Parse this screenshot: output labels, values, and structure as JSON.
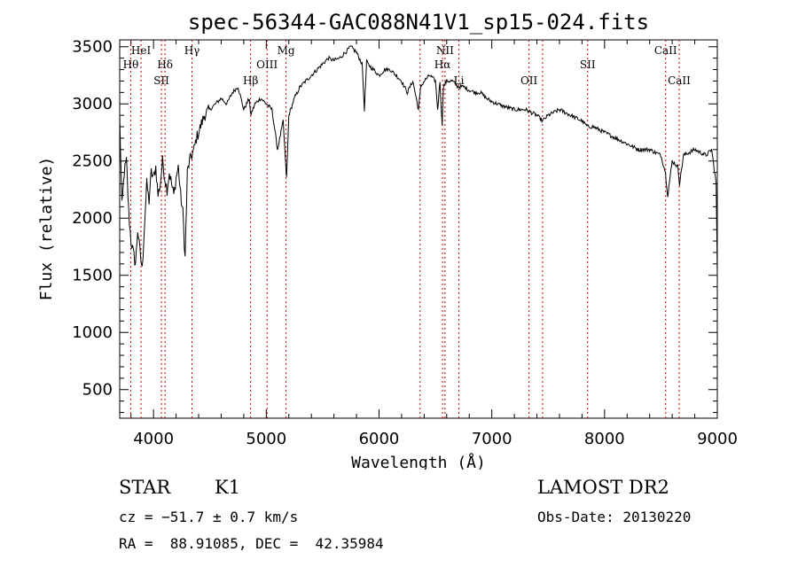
{
  "chart_data": {
    "type": "line",
    "title": "spec-56344-GAC088N41V1_sp15-024.fits",
    "xlabel": "Wavelength (Å)",
    "ylabel": "Flux (relative)",
    "xlim": [
      3700,
      9000
    ],
    "ylim": [
      250,
      3560
    ],
    "x_ticks": [
      4000,
      5000,
      6000,
      7000,
      8000,
      9000
    ],
    "y_ticks": [
      500,
      1000,
      1500,
      2000,
      2500,
      3000,
      3500
    ],
    "grid": false,
    "series": [
      {
        "x": [
          3700,
          3720,
          3740,
          3760,
          3780,
          3800,
          3820,
          3840,
          3860,
          3880,
          3900,
          3920,
          3940,
          3960,
          3980,
          4000,
          4020,
          4040,
          4060,
          4080,
          4100,
          4120,
          4140,
          4160,
          4180,
          4200,
          4220,
          4240,
          4260,
          4280,
          4300,
          4320,
          4340,
          4360,
          4380,
          4400,
          4450,
          4500,
          4550,
          4600,
          4650,
          4700,
          4750,
          4800,
          4850,
          4860,
          4900,
          4950,
          5000,
          5050,
          5100,
          5150,
          5170,
          5180,
          5200,
          5250,
          5300,
          5350,
          5400,
          5450,
          5500,
          5550,
          5600,
          5650,
          5700,
          5750,
          5800,
          5850,
          5870,
          5890,
          5900,
          5950,
          6000,
          6050,
          6100,
          6150,
          6200,
          6250,
          6300,
          6350,
          6370,
          6400,
          6450,
          6500,
          6520,
          6540,
          6560,
          6570,
          6600,
          6650,
          6700,
          6750,
          6800,
          6850,
          6900,
          6950,
          7000,
          7100,
          7200,
          7300,
          7400,
          7450,
          7500,
          7600,
          7700,
          7800,
          7850,
          7900,
          8000,
          8100,
          8200,
          8300,
          8400,
          8500,
          8540,
          8560,
          8600,
          8650,
          8665,
          8700,
          8800,
          8900,
          8950,
          8990,
          9000
        ],
        "values": [
          2900,
          2100,
          2400,
          2500,
          2050,
          1800,
          1700,
          1600,
          1900,
          1700,
          1550,
          1950,
          2300,
          2150,
          2400,
          2350,
          2450,
          2200,
          2300,
          2500,
          2350,
          2250,
          2400,
          2300,
          2200,
          2350,
          2450,
          2200,
          2050,
          1650,
          2400,
          2500,
          2550,
          2600,
          2700,
          2750,
          2900,
          2950,
          3000,
          3050,
          3000,
          3100,
          3150,
          2950,
          3050,
          2900,
          3000,
          3050,
          3000,
          2950,
          2600,
          2850,
          2500,
          2350,
          2900,
          3050,
          3150,
          3200,
          3250,
          3300,
          3350,
          3400,
          3380,
          3400,
          3450,
          3500,
          3450,
          3350,
          2950,
          3380,
          3350,
          3300,
          3250,
          3300,
          3300,
          3250,
          3200,
          3100,
          3200,
          2950,
          3150,
          3200,
          3250,
          3200,
          2950,
          3200,
          2800,
          3150,
          3200,
          3200,
          3150,
          3150,
          3120,
          3100,
          3100,
          3050,
          3020,
          2980,
          2950,
          2950,
          2900,
          2850,
          2900,
          2950,
          2900,
          2850,
          2800,
          2800,
          2750,
          2700,
          2650,
          2600,
          2600,
          2550,
          2400,
          2200,
          2500,
          2450,
          2300,
          2550,
          2600,
          2550,
          2600,
          2300,
          1500
        ],
        "color": "#000000"
      }
    ],
    "lines": [
      {
        "name": "Hθ",
        "x": 3798,
        "row": 2
      },
      {
        "name": "HeI",
        "x": 3889,
        "row": 1
      },
      {
        "name": "Hδ",
        "x": 4102,
        "row": 2
      },
      {
        "name": "SII",
        "x": 4070,
        "row": 3
      },
      {
        "name": "Hγ",
        "x": 4341,
        "row": 1
      },
      {
        "name": "Hβ",
        "x": 4861,
        "row": 3
      },
      {
        "name": "OIII",
        "x": 5007,
        "row": 2
      },
      {
        "name": "Mg",
        "x": 5175,
        "row": 1
      },
      {
        "name": "NII",
        "x": 6585,
        "row": 1
      },
      {
        "name": "Hα",
        "x": 6563,
        "row": 2
      },
      {
        "name": "Li",
        "x": 6708,
        "row": 3
      },
      {
        "name": "OII",
        "x": 7330,
        "row": 3
      },
      {
        "name": "SII",
        "x": 7850,
        "row": 2
      },
      {
        "name": "CaII",
        "x": 8542,
        "row": 1
      },
      {
        "name": "CaII",
        "x": 8662,
        "row": 3
      },
      {
        "name": "",
        "x": 6364,
        "row": 0
      },
      {
        "name": "",
        "x": 7450,
        "row": 0
      }
    ]
  },
  "info": {
    "object_class": "STAR",
    "subclass": "K1",
    "redshift": "cz = −51.7 ± 0.7 km/s",
    "coords": "RA =  88.91085, DEC =  42.35984",
    "survey": "LAMOST DR2",
    "obs_date": "Obs-Date: 20130220"
  }
}
